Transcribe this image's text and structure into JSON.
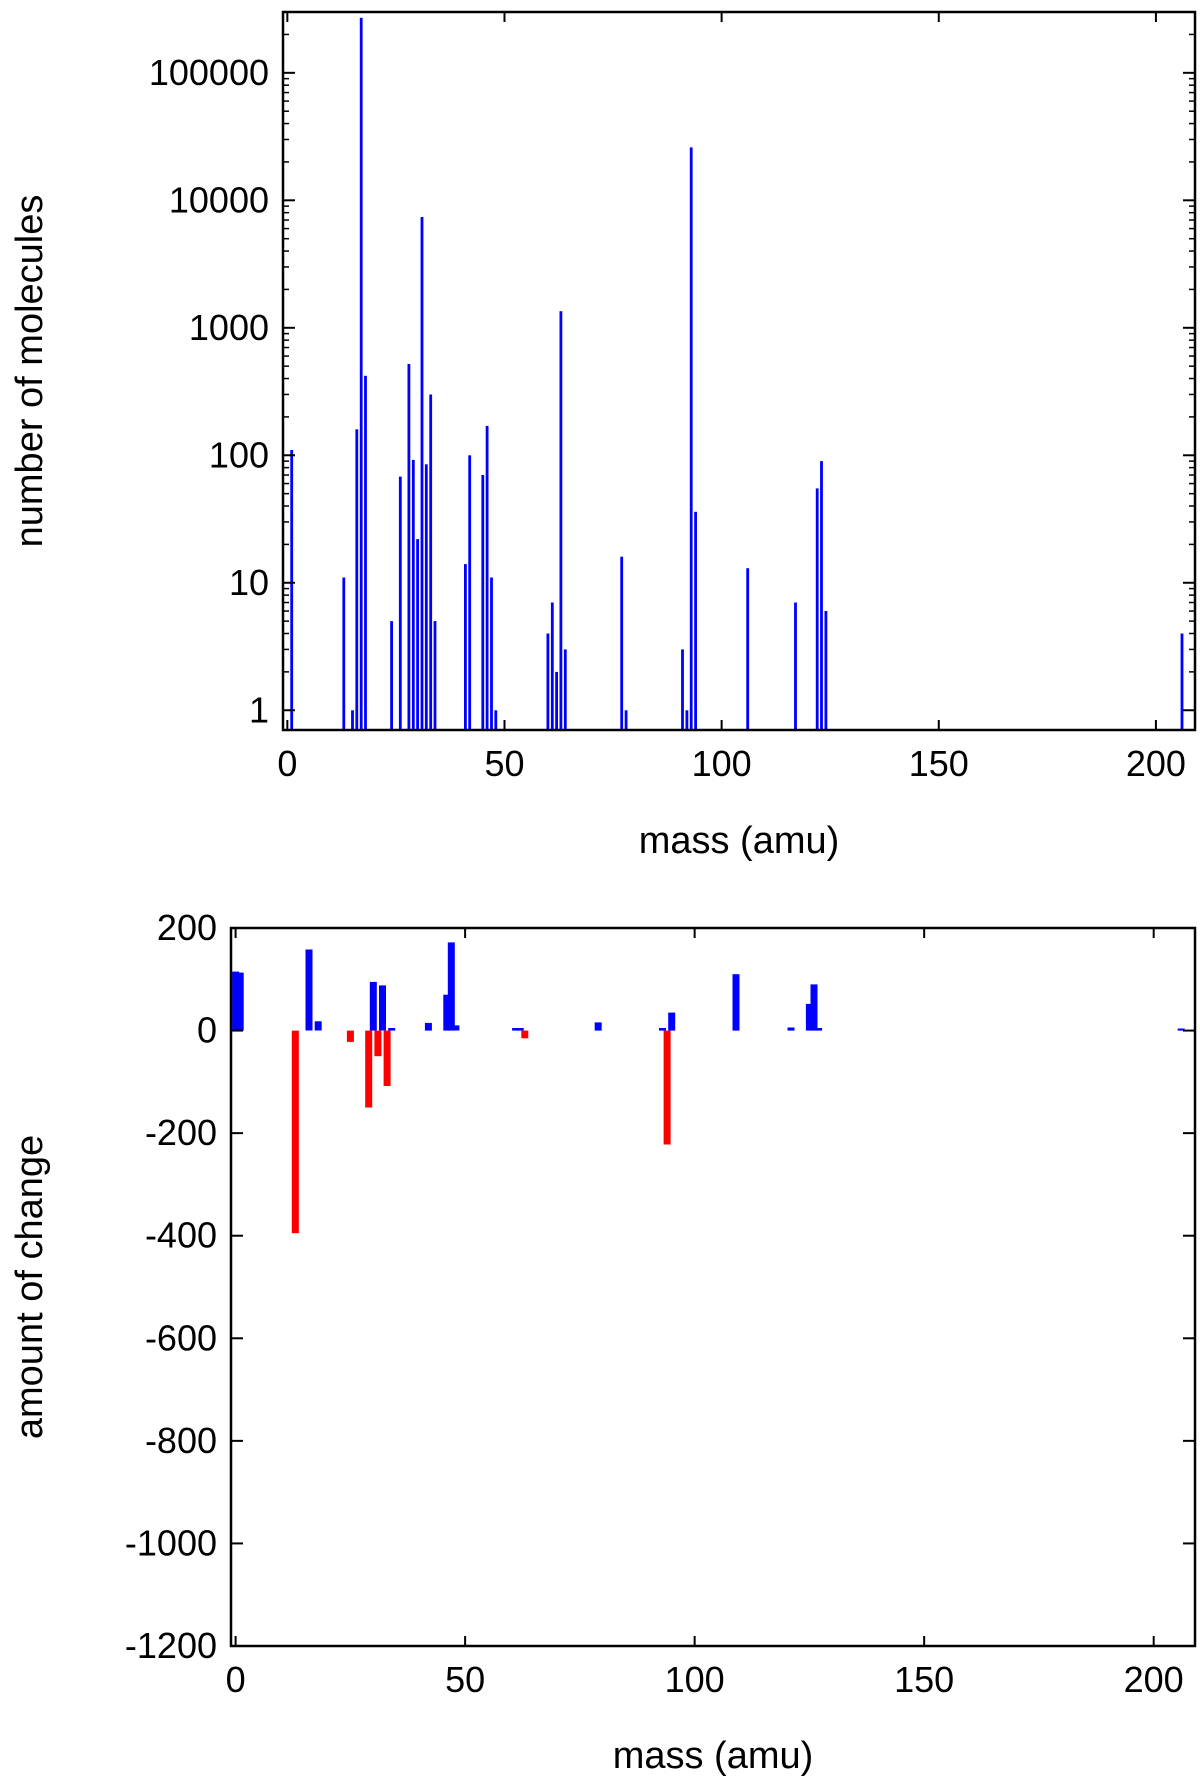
{
  "chart_data": [
    {
      "type": "bar",
      "title": "",
      "xlabel": "mass (amu)",
      "ylabel": "number of molecules",
      "xlim": [
        -1,
        209
      ],
      "ylim": [
        0.7,
        300000
      ],
      "y_scale": "log",
      "x_ticks": [
        0,
        50,
        100,
        150,
        200
      ],
      "y_ticks": [
        1,
        10,
        100,
        1000,
        10000,
        100000
      ],
      "y_tick_labels": [
        "1",
        "10",
        "100",
        "1000",
        "10000",
        "100000"
      ],
      "grid": false,
      "legend": "none",
      "bar_color": "#0000ff",
      "series": [
        {
          "x": [
            1,
            13,
            15,
            16,
            17,
            18,
            24,
            26,
            28,
            29,
            30,
            31,
            32,
            33,
            34,
            41,
            42,
            45,
            46,
            47,
            48,
            60,
            61,
            62,
            63,
            64,
            77,
            78,
            91,
            92,
            93,
            94,
            106,
            117,
            122,
            123,
            124,
            206
          ],
          "values": [
            110,
            11,
            1,
            160,
            270000,
            420,
            5,
            68,
            520,
            92,
            22,
            7400,
            85,
            300,
            5,
            14,
            100,
            70,
            170,
            11,
            1,
            4,
            7,
            2,
            1350,
            3,
            16,
            1,
            3,
            1,
            26000,
            36,
            13,
            7,
            55,
            90,
            6,
            4
          ]
        }
      ]
    },
    {
      "type": "bar",
      "title": "",
      "xlabel": "mass (amu)",
      "ylabel": "amount of change",
      "xlim": [
        -1,
        209
      ],
      "ylim": [
        -1200,
        200
      ],
      "x_ticks": [
        0,
        50,
        100,
        150,
        200
      ],
      "y_ticks": [
        -1200,
        -1000,
        -800,
        -600,
        -400,
        -200,
        0,
        200
      ],
      "y_tick_labels": [
        "-1200",
        "-1000",
        "-800",
        "-600",
        "-400",
        "-200",
        "0",
        "200"
      ],
      "grid": false,
      "legend": "none",
      "positive_color": "#0000ff",
      "negative_color": "#ff0000",
      "series": [
        {
          "x": [
            0,
            1,
            13,
            16,
            18,
            25,
            29,
            30,
            31,
            32,
            33,
            34,
            42,
            46,
            47,
            48,
            61,
            62,
            63,
            79,
            93,
            94,
            95,
            109,
            121,
            125,
            126,
            127,
            206
          ],
          "values": [
            115,
            113,
            -395,
            158,
            18,
            -22,
            -150,
            95,
            -50,
            88,
            -108,
            5,
            15,
            70,
            172,
            10,
            5,
            5,
            -15,
            16,
            5,
            -222,
            35,
            110,
            6,
            52,
            90,
            5,
            4
          ]
        }
      ]
    }
  ]
}
